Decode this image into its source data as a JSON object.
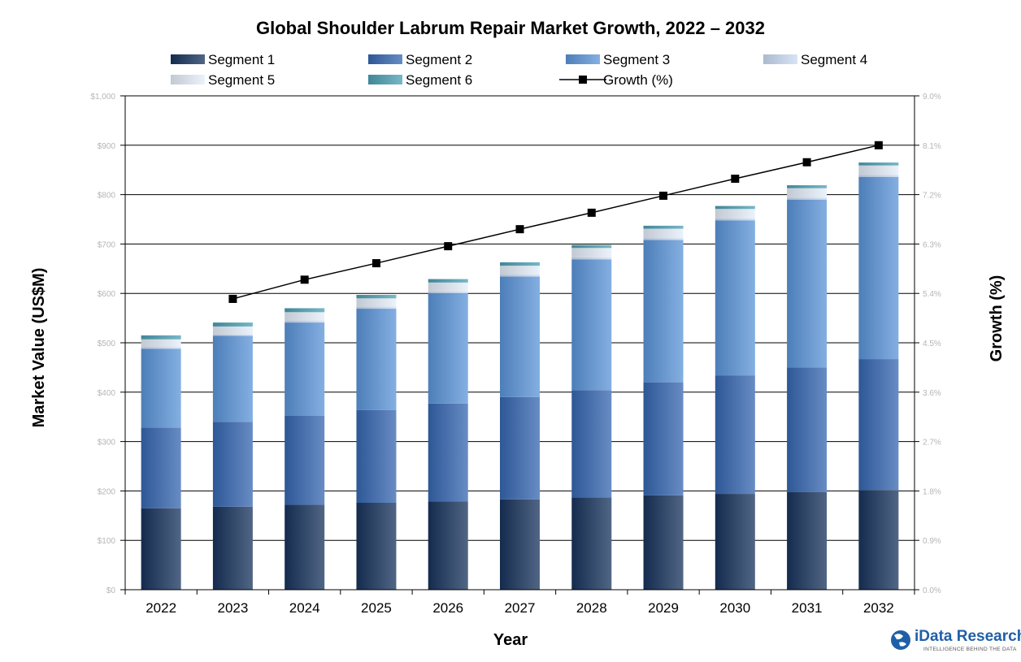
{
  "chart_data": {
    "type": "bar",
    "stacked": true,
    "title": "Global Shoulder Labrum Repair Market Growth, 2022 – 2032",
    "xlabel": "Year",
    "ylabel": "Market Value (US$M)",
    "y2label": "Growth (%)",
    "categories": [
      "2022",
      "2023",
      "2024",
      "2025",
      "2026",
      "2027",
      "2028",
      "2029",
      "2030",
      "2031",
      "2032"
    ],
    "ylim": [
      0,
      1000
    ],
    "yticks": [
      "$0",
      "$100",
      "$200",
      "$300",
      "$400",
      "$500",
      "$600",
      "$700",
      "$800",
      "$900",
      "$1,000"
    ],
    "y2lim": [
      0,
      9
    ],
    "y2ticks": [
      "0.0%",
      "0.9%",
      "1.8%",
      "2.7%",
      "3.6%",
      "4.5%",
      "5.4%",
      "6.3%",
      "7.2%",
      "8.1%",
      "9.0%"
    ],
    "grid": "horizontal",
    "legend_position": "top",
    "series": [
      {
        "name": "Segment 1",
        "color": "#17335c",
        "values": [
          165,
          168,
          172,
          176,
          179,
          183,
          187,
          191,
          194,
          198,
          202
        ]
      },
      {
        "name": "Segment 2",
        "color": "#3566b0",
        "values": [
          163,
          172,
          180,
          188,
          198,
          207,
          217,
          229,
          240,
          252,
          265
        ]
      },
      {
        "name": "Segment 3",
        "color": "#5b94d8",
        "values": [
          160,
          174,
          189,
          205,
          223,
          244,
          265,
          288,
          314,
          340,
          369
        ]
      },
      {
        "name": "Segment 4",
        "color": "#c9dbf2",
        "values": [
          3,
          3,
          4,
          4,
          4,
          4,
          4,
          4,
          4,
          4,
          4
        ]
      },
      {
        "name": "Segment 5",
        "color": "#e4edf8",
        "values": [
          16,
          16,
          17,
          17,
          18,
          18,
          19,
          19,
          19,
          19,
          19
        ]
      },
      {
        "name": "Segment 6",
        "color": "#4b9fb3",
        "values": [
          8,
          8,
          8,
          7,
          7,
          7,
          6,
          6,
          6,
          6,
          6
        ]
      }
    ],
    "line_series": {
      "name": "Growth (%)",
      "axis": "right",
      "color": "#000000",
      "values": [
        null,
        5.3,
        5.65,
        5.95,
        6.26,
        6.57,
        6.87,
        7.18,
        7.49,
        7.79,
        8.1
      ]
    }
  },
  "brand": {
    "name": "iData Research",
    "tagline": "INTELLIGENCE BEHIND THE DATA"
  }
}
